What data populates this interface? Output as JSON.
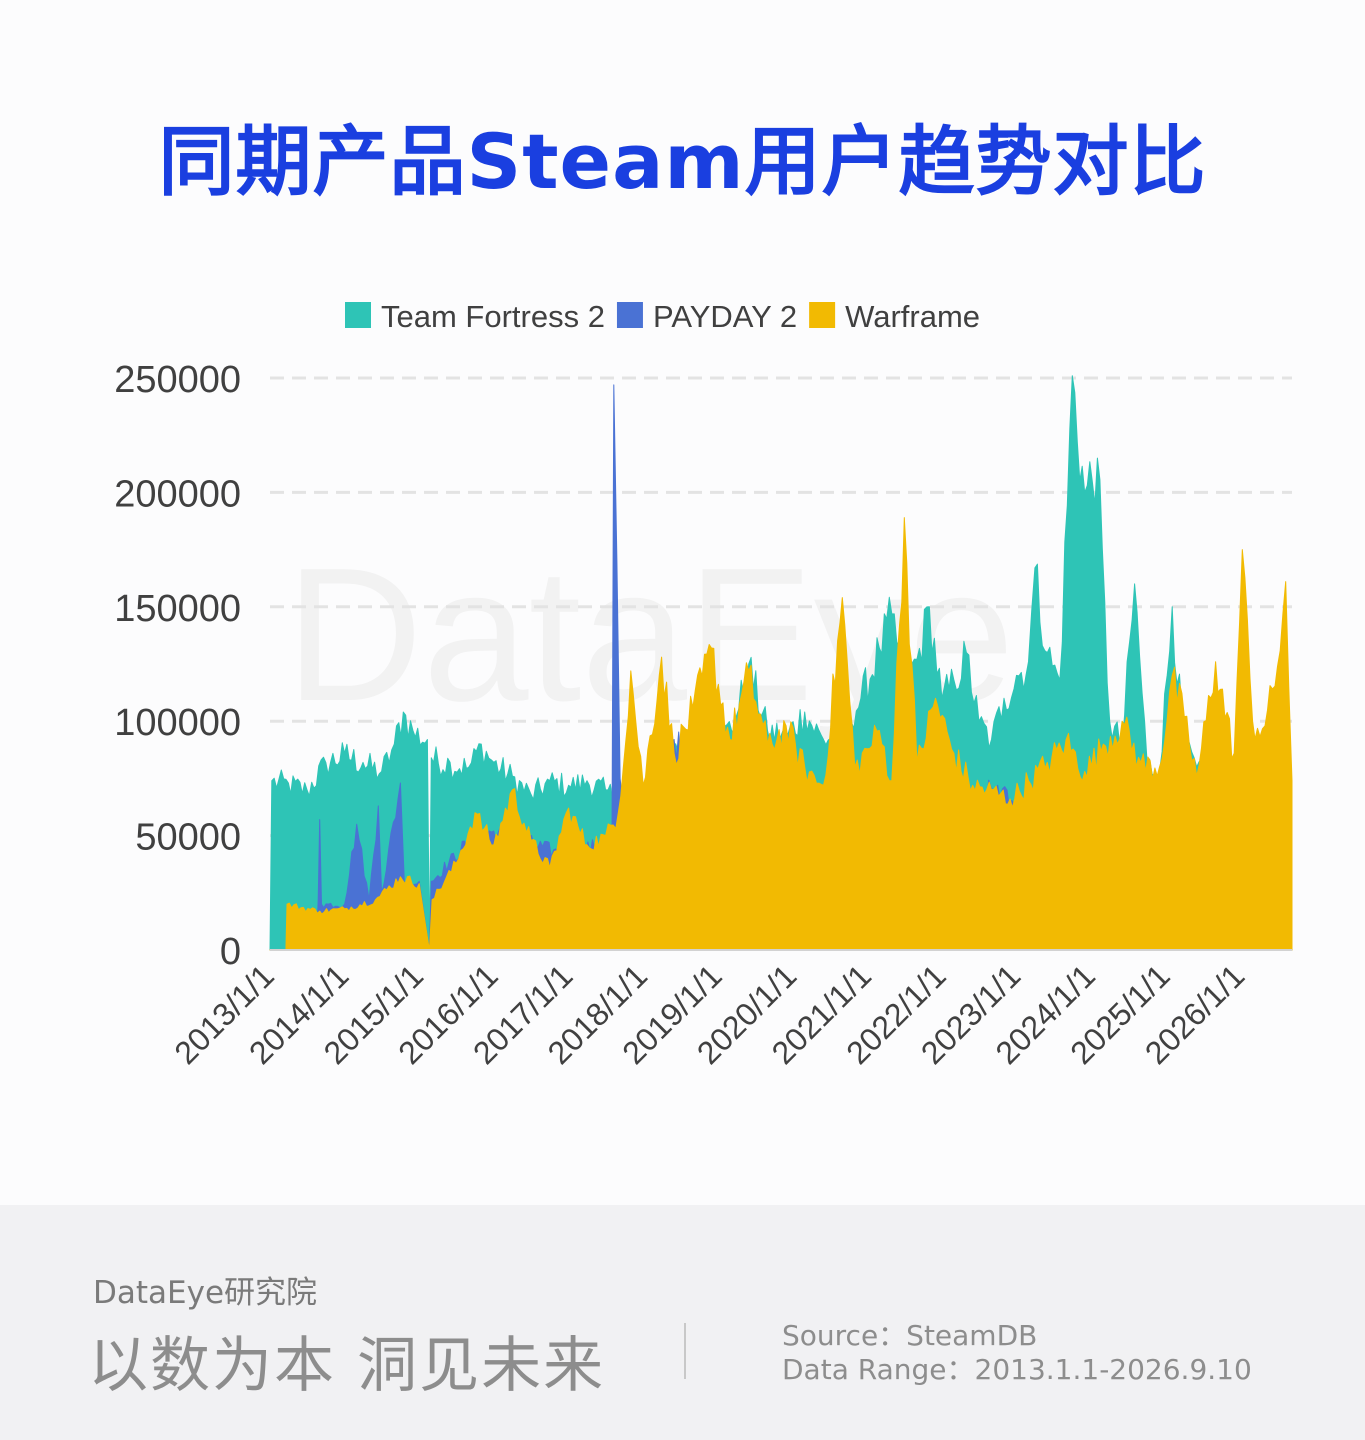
{
  "title": "同期产品Steam用户趋势对比",
  "watermark": "DataEye",
  "colors": {
    "team_fortress_2": "#2ec4b6",
    "payday_2": "#4a72d4",
    "warframe": "#f2ba02",
    "grid": "#e3e3e3",
    "title": "#1a3fe0"
  },
  "chart_data": {
    "type": "area",
    "title": "同期产品Steam用户趋势对比",
    "xlabel": "",
    "ylabel": "",
    "ylim": [
      0,
      250000
    ],
    "yticks": [
      "0",
      "50000",
      "100000",
      "150000",
      "200000",
      "250000"
    ],
    "x_tick_labels": [
      "2013/1/1",
      "2014/1/1",
      "2015/1/1",
      "2016/1/1",
      "2017/1/1",
      "2018/1/1",
      "2019/1/1",
      "2020/1/1",
      "2021/1/1",
      "2022/1/1",
      "2023/1/1",
      "2024/1/1",
      "2025/1/1",
      "2026/1/1"
    ],
    "x_range": [
      "2013-01-01",
      "2026-09-10"
    ],
    "grid": true,
    "legend_position": "top",
    "series": [
      {
        "name": "Team Fortress 2",
        "color": "#2ec4b6",
        "points": [
          [
            "2013-01-01",
            0
          ],
          [
            "2013-01-10",
            74000
          ],
          [
            "2013-04-01",
            73000
          ],
          [
            "2013-07-01",
            70000
          ],
          [
            "2013-10-01",
            82000
          ],
          [
            "2014-01-01",
            86000
          ],
          [
            "2014-04-01",
            82000
          ],
          [
            "2014-07-01",
            78000
          ],
          [
            "2014-09-01",
            90000
          ],
          [
            "2014-10-15",
            104000
          ],
          [
            "2014-12-01",
            96000
          ],
          [
            "2015-02-10",
            92000
          ],
          [
            "2015-02-20",
            0
          ],
          [
            "2015-03-01",
            84000
          ],
          [
            "2015-06-01",
            82000
          ],
          [
            "2015-09-01",
            80000
          ],
          [
            "2015-11-01",
            90000
          ],
          [
            "2016-01-01",
            82000
          ],
          [
            "2016-04-01",
            76000
          ],
          [
            "2016-07-01",
            68000
          ],
          [
            "2016-10-01",
            74000
          ],
          [
            "2017-01-01",
            72000
          ],
          [
            "2017-04-01",
            74000
          ],
          [
            "2017-07-01",
            70000
          ],
          [
            "2017-10-01",
            66000
          ],
          [
            "2018-01-01",
            72000
          ],
          [
            "2018-04-01",
            80000
          ],
          [
            "2018-07-01",
            86000
          ],
          [
            "2018-10-01",
            100000
          ],
          [
            "2019-01-01",
            90000
          ],
          [
            "2019-04-01",
            102000
          ],
          [
            "2019-06-01",
            125000
          ],
          [
            "2019-09-01",
            96000
          ],
          [
            "2019-12-01",
            94000
          ],
          [
            "2020-03-01",
            104000
          ],
          [
            "2020-06-01",
            92000
          ],
          [
            "2020-09-01",
            98000
          ],
          [
            "2020-12-01",
            110000
          ],
          [
            "2021-03-01",
            132000
          ],
          [
            "2021-05-01",
            147000
          ],
          [
            "2021-07-01",
            120000
          ],
          [
            "2021-09-01",
            127000
          ],
          [
            "2021-11-01",
            150000
          ],
          [
            "2022-01-01",
            110000
          ],
          [
            "2022-03-01",
            118000
          ],
          [
            "2022-05-01",
            130000
          ],
          [
            "2022-07-01",
            100000
          ],
          [
            "2022-09-01",
            92000
          ],
          [
            "2022-11-01",
            110000
          ],
          [
            "2023-01-01",
            120000
          ],
          [
            "2023-03-01",
            126000
          ],
          [
            "2023-04-01",
            167000
          ],
          [
            "2023-06-01",
            130000
          ],
          [
            "2023-08-01",
            118000
          ],
          [
            "2023-10-01",
            251000
          ],
          [
            "2023-12-01",
            200000
          ],
          [
            "2024-02-01",
            215000
          ],
          [
            "2024-04-01",
            100000
          ],
          [
            "2024-06-01",
            90000
          ],
          [
            "2024-08-01",
            160000
          ],
          [
            "2024-10-01",
            82000
          ],
          [
            "2024-12-01",
            78000
          ],
          [
            "2025-02-01",
            150000
          ],
          [
            "2025-04-01",
            88000
          ],
          [
            "2025-06-01",
            80000
          ],
          [
            "2025-09-01",
            70000
          ],
          [
            "2025-12-01",
            62000
          ],
          [
            "2026-03-01",
            60000
          ],
          [
            "2026-06-01",
            58000
          ],
          [
            "2026-09-10",
            56000
          ]
        ]
      },
      {
        "name": "PAYDAY 2",
        "color": "#4a72d4",
        "points": [
          [
            "2013-01-01",
            0
          ],
          [
            "2013-08-15",
            0
          ],
          [
            "2013-08-25",
            22000
          ],
          [
            "2013-09-01",
            57000
          ],
          [
            "2013-09-10",
            20000
          ],
          [
            "2014-01-01",
            20000
          ],
          [
            "2014-03-01",
            55000
          ],
          [
            "2014-05-01",
            22000
          ],
          [
            "2014-06-15",
            63000
          ],
          [
            "2014-07-01",
            25000
          ],
          [
            "2014-10-01",
            73000
          ],
          [
            "2014-10-20",
            30000
          ],
          [
            "2015-01-01",
            30000
          ],
          [
            "2015-02-20",
            0
          ],
          [
            "2015-03-01",
            30000
          ],
          [
            "2015-09-01",
            48000
          ],
          [
            "2016-01-01",
            52000
          ],
          [
            "2016-06-01",
            48000
          ],
          [
            "2016-12-01",
            42000
          ],
          [
            "2017-06-01",
            46000
          ],
          [
            "2017-08-01",
            50000
          ],
          [
            "2017-08-10",
            247000
          ],
          [
            "2017-08-25",
            170000
          ],
          [
            "2017-09-10",
            75000
          ],
          [
            "2017-10-01",
            58000
          ],
          [
            "2018-03-01",
            72000
          ],
          [
            "2018-06-01",
            92000
          ],
          [
            "2019-01-01",
            70000
          ],
          [
            "2020-01-01",
            62000
          ],
          [
            "2021-01-01",
            60000
          ],
          [
            "2022-01-01",
            56000
          ],
          [
            "2022-10-01",
            72000
          ],
          [
            "2023-01-01",
            60000
          ],
          [
            "2023-06-01",
            70000
          ],
          [
            "2024-01-01",
            56000
          ],
          [
            "2025-01-01",
            50000
          ],
          [
            "2026-09-10",
            46000
          ]
        ]
      },
      {
        "name": "Warframe",
        "color": "#f2ba02",
        "points": [
          [
            "2013-01-01",
            0
          ],
          [
            "2013-03-20",
            0
          ],
          [
            "2013-03-25",
            20000
          ],
          [
            "2013-09-01",
            17000
          ],
          [
            "2014-01-01",
            18000
          ],
          [
            "2014-06-01",
            22000
          ],
          [
            "2014-10-01",
            32000
          ],
          [
            "2015-01-01",
            29000
          ],
          [
            "2015-02-20",
            0
          ],
          [
            "2015-03-05",
            22000
          ],
          [
            "2015-07-01",
            38000
          ],
          [
            "2015-10-01",
            60000
          ],
          [
            "2016-01-01",
            46000
          ],
          [
            "2016-04-01",
            70000
          ],
          [
            "2016-07-01",
            48000
          ],
          [
            "2016-10-01",
            36000
          ],
          [
            "2017-01-01",
            62000
          ],
          [
            "2017-04-01",
            46000
          ],
          [
            "2017-07-01",
            50000
          ],
          [
            "2017-09-01",
            60000
          ],
          [
            "2017-11-01",
            122000
          ],
          [
            "2018-01-01",
            72000
          ],
          [
            "2018-04-01",
            128000
          ],
          [
            "2018-06-01",
            86000
          ],
          [
            "2018-09-01",
            106000
          ],
          [
            "2018-12-01",
            132000
          ],
          [
            "2019-03-01",
            92000
          ],
          [
            "2019-06-01",
            122000
          ],
          [
            "2019-09-01",
            90000
          ],
          [
            "2019-12-01",
            98000
          ],
          [
            "2020-03-01",
            80000
          ],
          [
            "2020-06-01",
            72000
          ],
          [
            "2020-09-01",
            154000
          ],
          [
            "2020-11-01",
            80000
          ],
          [
            "2021-01-01",
            88000
          ],
          [
            "2021-03-01",
            96000
          ],
          [
            "2021-05-01",
            74000
          ],
          [
            "2021-07-01",
            189000
          ],
          [
            "2021-09-01",
            82000
          ],
          [
            "2021-12-01",
            110000
          ],
          [
            "2022-03-01",
            86000
          ],
          [
            "2022-06-01",
            72000
          ],
          [
            "2022-09-01",
            70000
          ],
          [
            "2022-12-01",
            66000
          ],
          [
            "2023-03-01",
            74000
          ],
          [
            "2023-06-01",
            82000
          ],
          [
            "2023-09-01",
            92000
          ],
          [
            "2023-12-01",
            78000
          ],
          [
            "2024-03-01",
            90000
          ],
          [
            "2024-06-01",
            100000
          ],
          [
            "2024-09-01",
            82000
          ],
          [
            "2024-12-01",
            80000
          ],
          [
            "2025-02-01",
            120000
          ],
          [
            "2025-04-01",
            102000
          ],
          [
            "2025-06-01",
            76000
          ],
          [
            "2025-09-01",
            126000
          ],
          [
            "2025-12-01",
            86000
          ],
          [
            "2026-01-10",
            175000
          ],
          [
            "2026-03-01",
            100000
          ],
          [
            "2026-05-01",
            98000
          ],
          [
            "2026-07-01",
            124000
          ],
          [
            "2026-08-10",
            161000
          ],
          [
            "2026-09-10",
            74000
          ]
        ]
      }
    ]
  },
  "footer": {
    "brand": "DataEye研究院",
    "slogan": "以数为本 洞见未来",
    "source": "Source：SteamDB",
    "data_range": "Data Range：2013.1.1-2026.9.10"
  }
}
